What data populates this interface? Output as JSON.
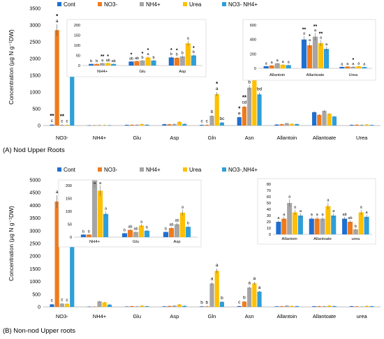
{
  "colors": {
    "Cont": "#1f6fd1",
    "NO3-": "#f07b1c",
    "NH4+": "#a5a5a5",
    "Urea": "#ffc000",
    "NO3- NH4+": "#2e9fd9",
    "axis": "#bfbfbf",
    "text": "#000000"
  },
  "chart_data": [
    {
      "id": "A",
      "type": "bar",
      "caption": "(A) Nod Upper Roots",
      "ylabel": "Concentration (µg N g⁻¹DW)",
      "ylim": [
        0,
        3500
      ],
      "yticks": [
        "0",
        "500",
        "1000",
        "1500",
        "2000",
        "2500",
        "3000",
        "3500"
      ],
      "legend": {
        "position": "top",
        "labels": [
          "Cont",
          "NO3-",
          "NH4+",
          "Urea",
          "NO3- NH4+"
        ]
      },
      "categories": [
        "NO3-",
        "NH4+",
        "Glu",
        "Asp",
        "Gln",
        "Asn",
        "Allantoin",
        "Allantoate",
        "Urea"
      ],
      "series": [
        {
          "name": "Cont",
          "values": [
            25,
            8,
            20,
            40,
            20,
            250,
            30,
            400,
            20
          ]
        },
        {
          "name": "NO3-",
          "values": [
            2850,
            8,
            22,
            38,
            20,
            560,
            40,
            320,
            25
          ]
        },
        {
          "name": "NH4+",
          "values": [
            20,
            12,
            25,
            45,
            290,
            1130,
            70,
            440,
            22
          ]
        },
        {
          "name": "Urea",
          "values": [
            20,
            12,
            40,
            110,
            940,
            1780,
            50,
            350,
            28
          ]
        },
        {
          "name": "NO3- NH4+",
          "values": [
            2030,
            8,
            25,
            50,
            90,
            930,
            45,
            270,
            18
          ]
        }
      ],
      "letters": [
        [
          "c",
          "a",
          "c",
          "c",
          "b"
        ],
        [],
        [],
        [],
        [
          "c",
          "c",
          "b",
          "a",
          "bc"
        ],
        [
          "e",
          "cd",
          "b",
          "a",
          "bd"
        ],
        [],
        [],
        []
      ],
      "stars": [
        [
          "**",
          "*",
          "**",
          "",
          "*"
        ],
        [],
        [],
        [],
        [
          "",
          "",
          "",
          "*",
          ""
        ],
        [
          "*",
          "**",
          "*",
          "**",
          ""
        ],
        [],
        [],
        []
      ],
      "insets": [
        {
          "categories": [
            "NH4+",
            "Glu",
            "Asp"
          ],
          "ylim": [
            0,
            200
          ],
          "yticks": [
            "0",
            "50",
            "100",
            "150",
            "200"
          ],
          "series_values": [
            [
              8,
              20,
              40
            ],
            [
              8,
              22,
              38
            ],
            [
              12,
              25,
              45
            ],
            [
              12,
              40,
              110
            ],
            [
              8,
              25,
              50
            ]
          ],
          "letters": [
            [
              "b",
              "b",
              "a",
              "ab",
              "ab"
            ],
            [
              "ab",
              "ab",
              "b",
              "a",
              "b"
            ],
            [
              "b",
              "b",
              "b",
              "a",
              "b"
            ]
          ],
          "stars": [
            [
              "",
              "",
              "**",
              "*",
              ""
            ],
            [
              "*",
              "",
              "*",
              "*",
              ""
            ],
            [
              "*",
              "*",
              "",
              "",
              "*"
            ]
          ]
        },
        {
          "categories": [
            "Allantoin",
            "Allantoate",
            "Urea"
          ],
          "ylim": [
            0,
            600
          ],
          "yticks": [
            "0",
            "200",
            "400",
            "600"
          ],
          "series_values": [
            [
              30,
              400,
              20
            ],
            [
              40,
              320,
              25
            ],
            [
              70,
              440,
              22
            ],
            [
              50,
              350,
              28
            ],
            [
              45,
              270,
              18
            ]
          ],
          "letters": [
            [
              "a",
              "a",
              "a",
              "a",
              "a"
            ],
            [
              "a",
              "a",
              "a",
              "a",
              "a"
            ],
            [
              "a",
              "a",
              "a",
              "a",
              "a"
            ]
          ],
          "stars": [
            [
              "",
              "",
              "",
              "",
              ""
            ],
            [
              "**",
              "*",
              "**",
              "**",
              ""
            ],
            [
              "",
              "",
              "*",
              "",
              ""
            ]
          ]
        }
      ]
    },
    {
      "id": "B",
      "type": "bar",
      "caption": "(B) Non-nod Upper roots",
      "ylabel": "Concentration (µg N g⁻¹DW)",
      "ylim": [
        0,
        5000
      ],
      "yticks": [
        "0",
        "500",
        "1000",
        "1500",
        "2000",
        "2500",
        "3000",
        "3500",
        "4000",
        "4500",
        "5000"
      ],
      "legend": {
        "position": "top",
        "labels": [
          "Cont",
          "NO3-",
          "NH4+",
          "Urea",
          "NO3-,NH4+"
        ]
      },
      "categories": [
        "NO3-",
        "NH4+",
        "Glu",
        "Asp",
        "Gln",
        "Asn",
        "Allantoin",
        "Allantoate",
        "urea"
      ],
      "series": [
        {
          "name": "Cont",
          "values": [
            100,
            10,
            15,
            20,
            20,
            30,
            20,
            25,
            25
          ]
        },
        {
          "name": "NO3-",
          "values": [
            4150,
            10,
            28,
            35,
            20,
            210,
            25,
            25,
            20
          ]
        },
        {
          "name": "NH4+",
          "values": [
            130,
            220,
            20,
            50,
            920,
            760,
            50,
            25,
            8
          ]
        },
        {
          "name": "Urea",
          "values": [
            120,
            180,
            45,
            95,
            1420,
            930,
            35,
            45,
            35
          ]
        },
        {
          "name": "NO3-,NH4+",
          "values": [
            2850,
            90,
            25,
            40,
            200,
            600,
            30,
            30,
            28
          ]
        }
      ],
      "letters": [
        [
          "c",
          "a",
          "c",
          "c",
          "b"
        ],
        [],
        [],
        [],
        [
          "b",
          "b",
          "a",
          "a",
          "b"
        ],
        [
          "c",
          "b",
          "a",
          "a",
          "a"
        ],
        [],
        [],
        []
      ],
      "insets": [
        {
          "categories": [
            "NH4+",
            "Glu",
            "Asp"
          ],
          "ylim": [
            0,
            200
          ],
          "yticks": [
            "0",
            "50",
            "100",
            "150",
            "200"
          ],
          "series_values": [
            [
              10,
              15,
              20
            ],
            [
              10,
              28,
              35
            ],
            [
              220,
              20,
              50
            ],
            [
              180,
              45,
              95
            ],
            [
              90,
              25,
              40
            ]
          ],
          "letters": [
            [
              "b",
              "b",
              "a",
              "a",
              "a"
            ],
            [
              "b",
              "ab",
              "ab",
              "a",
              "b"
            ],
            [
              "b",
              "ab",
              "ab",
              "a",
              "b"
            ]
          ],
          "stars": []
        },
        {
          "categories": [
            "Allantoin",
            "Allantoate",
            "urea"
          ],
          "ylim": [
            0,
            80
          ],
          "yticks": [
            "0",
            "10",
            "20",
            "30",
            "40",
            "50",
            "60",
            "70",
            "80"
          ],
          "series_values": [
            [
              20,
              25,
              25
            ],
            [
              25,
              25,
              20
            ],
            [
              50,
              25,
              8
            ],
            [
              35,
              45,
              35
            ],
            [
              30,
              30,
              28
            ]
          ],
          "letters": [
            [
              "a",
              "a",
              "a",
              "a",
              "a"
            ],
            [
              "a",
              "a",
              "a",
              "a",
              "a"
            ],
            [
              "ab",
              "ab",
              "b",
              "a",
              "a"
            ]
          ],
          "stars": []
        }
      ]
    }
  ]
}
